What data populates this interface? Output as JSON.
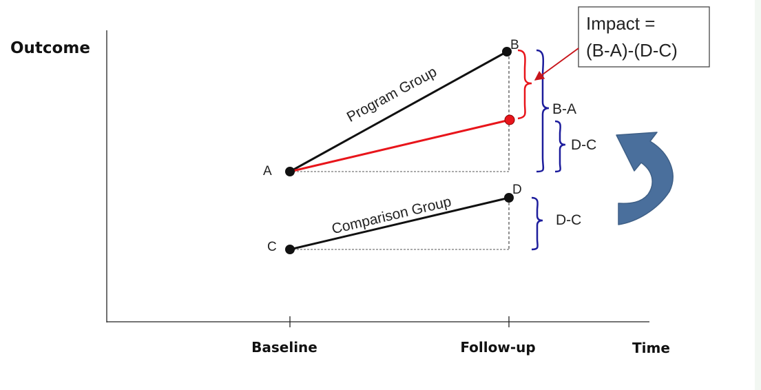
{
  "axes": {
    "y_label": "Outcome",
    "x_label": "Time",
    "x_ticks": [
      "Baseline",
      "Follow-up"
    ]
  },
  "points": {
    "a": "A",
    "b": "B",
    "c": "C",
    "d": "D"
  },
  "lines": {
    "program": "Program Group",
    "comparison": "Comparison Group"
  },
  "callout": {
    "line1": "Impact =",
    "line2": "(B-A)-(D-C)"
  },
  "brackets": {
    "b_minus_a": "B-A",
    "d_minus_c_upper": "D-C",
    "d_minus_c_lower": "D-C"
  },
  "colors": {
    "program_line": "#111111",
    "counterfactual_line": "#e8151b",
    "impact_bracket": "#e8151b",
    "difference_bracket": "#1d1d9c",
    "arrow_fill": "#4a6f9c"
  },
  "icons": {
    "curved_arrow": "curved-arrow-icon"
  }
}
